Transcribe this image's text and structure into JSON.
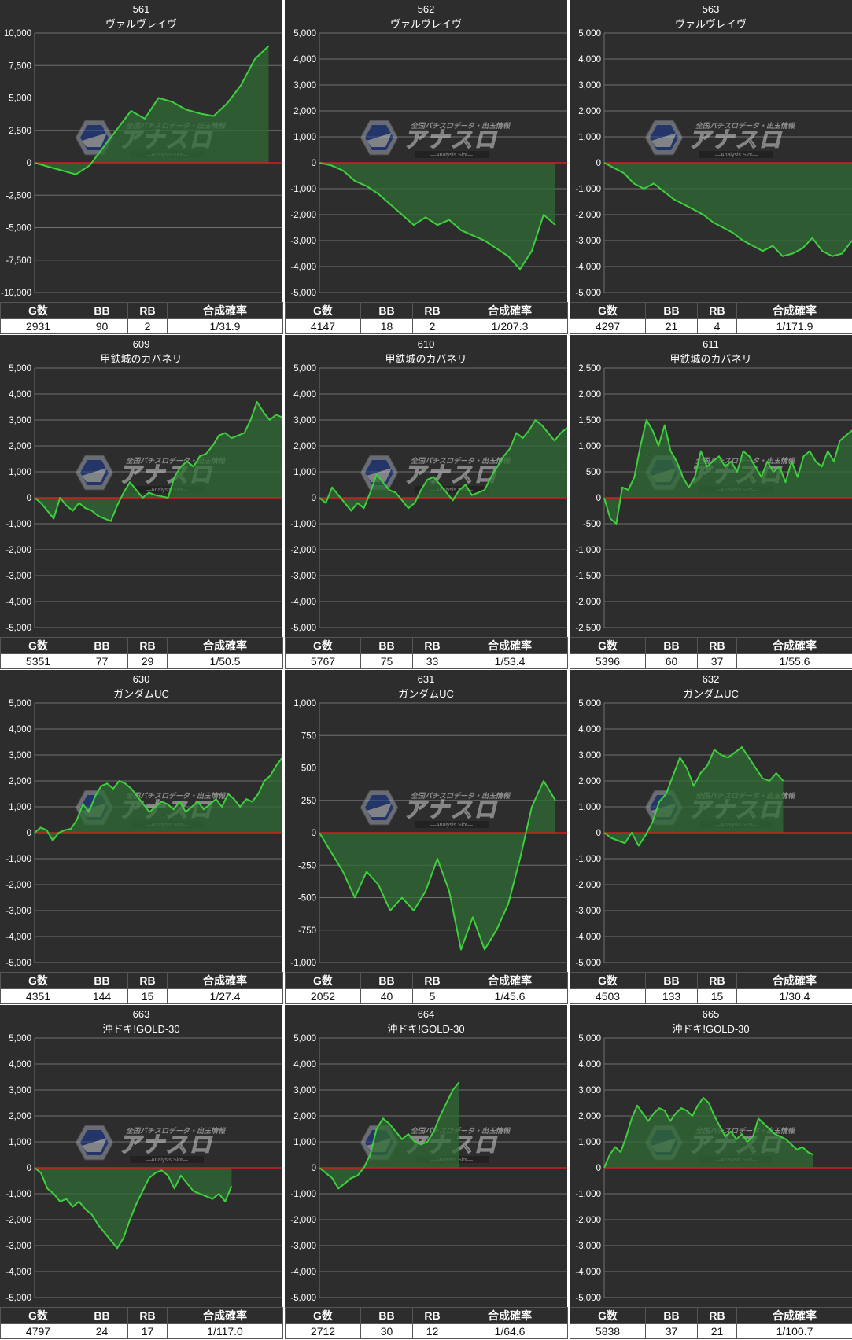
{
  "colors": {
    "panel_bg": "#2d2d2d",
    "grid": "#707070",
    "zero_line": "#d02020",
    "line": "#3ecf3e",
    "fill": "#2f6b33"
  },
  "icon": "analysis-slot-watermark-logo",
  "watermark": {
    "small_text": "全国パチスロデータ・出玉情報",
    "logo_text": "アナスロ",
    "sub_text": "―Analysis Slot―"
  },
  "stats_headers": [
    "G数",
    "BB",
    "RB",
    "合成確率"
  ],
  "chart_data": [
    {
      "type": "area",
      "machine_no": "561",
      "title": "ヴァルヴレイヴ",
      "ylim": [
        -10000,
        10000
      ],
      "yticks": [
        "10,000",
        "7,500",
        "5,000",
        "2,500",
        "0",
        "-2,500",
        "-5,000",
        "-7,500",
        "-10,000"
      ],
      "grid": true,
      "x": [
        0,
        1,
        2,
        3,
        4,
        5,
        6,
        7,
        8,
        9,
        10,
        11,
        12,
        13,
        14,
        15,
        16,
        17,
        18
      ],
      "values": [
        0,
        -300,
        -600,
        -900,
        -200,
        1200,
        2600,
        4000,
        3400,
        5000,
        4700,
        4100,
        3800,
        3600,
        4600,
        6000,
        8000,
        9000,
        null
      ],
      "stats": {
        "g": "2931",
        "bb": "90",
        "rb": "2",
        "rate": "1/31.9"
      }
    },
    {
      "type": "area",
      "machine_no": "562",
      "title": "ヴァルヴレイヴ",
      "ylim": [
        -5000,
        5000
      ],
      "yticks": [
        "5,000",
        "4,000",
        "3,000",
        "2,000",
        "1,000",
        "0",
        "-1,000",
        "-2,000",
        "-3,000",
        "-4,000",
        "-5,000"
      ],
      "grid": true,
      "x": [
        0,
        1,
        2,
        3,
        4,
        5,
        6,
        7,
        8,
        9,
        10,
        11,
        12,
        13,
        14,
        15,
        16,
        17,
        18,
        19,
        20,
        21
      ],
      "values": [
        0,
        -100,
        -300,
        -700,
        -900,
        -1200,
        -1600,
        -2000,
        -2400,
        -2100,
        -2400,
        -2200,
        -2600,
        -2800,
        -3000,
        -3300,
        -3600,
        -4100,
        -3400,
        -2000,
        -2400,
        null
      ],
      "stats": {
        "g": "4147",
        "bb": "18",
        "rb": "2",
        "rate": "1/207.3"
      }
    },
    {
      "type": "area",
      "machine_no": "563",
      "title": "ヴァルヴレイヴ",
      "ylim": [
        -5000,
        5000
      ],
      "yticks": [
        "5,000",
        "4,000",
        "3,000",
        "2,000",
        "1,000",
        "0",
        "-1,000",
        "-2,000",
        "-3,000",
        "-4,000",
        "-5,000"
      ],
      "grid": true,
      "x": [
        0,
        1,
        2,
        3,
        4,
        5,
        6,
        7,
        8,
        9,
        10,
        11,
        12,
        13,
        14,
        15,
        16,
        17,
        18,
        19,
        20,
        21,
        22,
        23,
        24,
        25
      ],
      "values": [
        0,
        -200,
        -400,
        -800,
        -1000,
        -800,
        -1100,
        -1400,
        -1600,
        -1800,
        -2000,
        -2300,
        -2500,
        -2700,
        -3000,
        -3200,
        -3400,
        -3200,
        -3600,
        -3500,
        -3300,
        -2900,
        -3400,
        -3600,
        -3500,
        -3000
      ],
      "stats": {
        "g": "4297",
        "bb": "21",
        "rb": "4",
        "rate": "1/171.9"
      }
    },
    {
      "type": "area",
      "machine_no": "609",
      "title": "甲鉄城のカバネリ",
      "ylim": [
        -5000,
        5000
      ],
      "yticks": [
        "5,000",
        "4,000",
        "3,000",
        "2,000",
        "1,000",
        "0",
        "-1,000",
        "-2,000",
        "-3,000",
        "-4,000",
        "-5,000"
      ],
      "grid": true,
      "x": [
        0,
        1,
        2,
        3,
        4,
        5,
        6,
        7,
        8,
        9,
        10,
        11,
        12,
        13,
        14,
        15,
        16,
        17,
        18,
        19,
        20,
        21,
        22,
        23,
        24,
        25,
        26,
        27,
        28,
        29,
        30,
        31,
        32,
        33,
        34,
        35,
        36,
        37,
        38,
        39
      ],
      "values": [
        0,
        -200,
        -500,
        -800,
        0,
        -300,
        -500,
        -200,
        -400,
        -500,
        -700,
        -800,
        -900,
        -300,
        200,
        600,
        300,
        0,
        200,
        100,
        50,
        0,
        800,
        1200,
        1400,
        1200,
        1600,
        1700,
        2000,
        2400,
        2500,
        2300,
        2400,
        2500,
        3000,
        3700,
        3300,
        3000,
        3200,
        3100
      ],
      "stats": {
        "g": "5351",
        "bb": "77",
        "rb": "29",
        "rate": "1/50.5"
      }
    },
    {
      "type": "area",
      "machine_no": "610",
      "title": "甲鉄城のカバネリ",
      "ylim": [
        -5000,
        5000
      ],
      "yticks": [
        "5,000",
        "4,000",
        "3,000",
        "2,000",
        "1,000",
        "0",
        "-1,000",
        "-2,000",
        "-3,000",
        "-4,000",
        "-5,000"
      ],
      "grid": true,
      "x": [
        0,
        1,
        2,
        3,
        4,
        5,
        6,
        7,
        8,
        9,
        10,
        11,
        12,
        13,
        14,
        15,
        16,
        17,
        18,
        19,
        20,
        21,
        22,
        23,
        24,
        25,
        26,
        27,
        28,
        29,
        30,
        31,
        32,
        33,
        34,
        35,
        36,
        37,
        38,
        39
      ],
      "values": [
        0,
        -200,
        400,
        100,
        -200,
        -500,
        -200,
        -400,
        200,
        900,
        600,
        300,
        200,
        -100,
        -400,
        -200,
        300,
        700,
        800,
        500,
        200,
        -100,
        300,
        500,
        100,
        200,
        300,
        800,
        1200,
        1600,
        1900,
        2500,
        2300,
        2600,
        3000,
        2800,
        2500,
        2200,
        2500,
        2700
      ],
      "stats": {
        "g": "5767",
        "bb": "75",
        "rb": "33",
        "rate": "1/53.4"
      }
    },
    {
      "type": "area",
      "machine_no": "611",
      "title": "甲鉄城のカバネリ",
      "ylim": [
        -2500,
        2500
      ],
      "yticks": [
        "2,500",
        "2,000",
        "1,500",
        "1,000",
        "500",
        "0",
        "-500",
        "-1,000",
        "-1,500",
        "-2,000",
        "-2,500"
      ],
      "grid": true,
      "x": [
        0,
        1,
        2,
        3,
        4,
        5,
        6,
        7,
        8,
        9,
        10,
        11,
        12,
        13,
        14,
        15,
        16,
        17,
        18,
        19,
        20,
        21,
        22,
        23,
        24,
        25,
        26,
        27,
        28,
        29,
        30,
        31,
        32,
        33,
        34,
        35,
        36,
        37,
        38,
        39,
        40,
        41
      ],
      "values": [
        0,
        -400,
        -500,
        200,
        150,
        400,
        1000,
        1500,
        1300,
        1000,
        1400,
        900,
        700,
        400,
        200,
        400,
        900,
        600,
        700,
        800,
        600,
        700,
        500,
        900,
        800,
        600,
        400,
        700,
        500,
        600,
        300,
        700,
        400,
        800,
        900,
        700,
        600,
        900,
        700,
        1100,
        1200,
        1300
      ],
      "stats": {
        "g": "5396",
        "bb": "60",
        "rb": "37",
        "rate": "1/55.6"
      }
    },
    {
      "type": "area",
      "machine_no": "630",
      "title": "ガンダムUC",
      "ylim": [
        -5000,
        5000
      ],
      "yticks": [
        "5,000",
        "4,000",
        "3,000",
        "2,000",
        "1,000",
        "0",
        "-1,000",
        "-2,000",
        "-3,000",
        "-4,000",
        "-5,000"
      ],
      "grid": true,
      "x": [
        0,
        1,
        2,
        3,
        4,
        5,
        6,
        7,
        8,
        9,
        10,
        11,
        12,
        13,
        14,
        15,
        16,
        17,
        18,
        19,
        20,
        21,
        22,
        23,
        24,
        25,
        26,
        27,
        28,
        29,
        30,
        31,
        32,
        33,
        34,
        35,
        36,
        37,
        38,
        39,
        40,
        41
      ],
      "values": [
        0,
        200,
        100,
        -300,
        0,
        100,
        150,
        500,
        1100,
        800,
        1400,
        1800,
        1900,
        1700,
        2000,
        1900,
        1700,
        1400,
        1100,
        800,
        1000,
        1200,
        1100,
        900,
        1200,
        800,
        1000,
        1200,
        900,
        1100,
        1300,
        1000,
        1500,
        1300,
        1000,
        1300,
        1200,
        1500,
        2000,
        2200,
        2600,
        2900
      ],
      "stats": {
        "g": "4351",
        "bb": "144",
        "rb": "15",
        "rate": "1/27.4"
      }
    },
    {
      "type": "area",
      "machine_no": "631",
      "title": "ガンダムUC",
      "ylim": [
        -1000,
        1000
      ],
      "yticks": [
        "1,000",
        "750",
        "500",
        "250",
        "0",
        "-250",
        "-500",
        "-750",
        "-1,000"
      ],
      "grid": true,
      "x": [
        0,
        1,
        2,
        3,
        4,
        5,
        6,
        7,
        8,
        9,
        10,
        11,
        12,
        13,
        14,
        15,
        16,
        17,
        18,
        19,
        20,
        21
      ],
      "values": [
        0,
        -150,
        -300,
        -500,
        -300,
        -400,
        -600,
        -500,
        -600,
        -450,
        -200,
        -450,
        -900,
        -650,
        -900,
        -750,
        -550,
        -200,
        200,
        400,
        250,
        null
      ],
      "stats": {
        "g": "2052",
        "bb": "40",
        "rb": "5",
        "rate": "1/45.6"
      }
    },
    {
      "type": "area",
      "machine_no": "632",
      "title": "ガンダムUC",
      "ylim": [
        -5000,
        5000
      ],
      "yticks": [
        "5,000",
        "4,000",
        "3,000",
        "2,000",
        "1,000",
        "0",
        "-1,000",
        "-2,000",
        "-3,000",
        "-4,000",
        "-5,000"
      ],
      "grid": true,
      "x": [
        0,
        1,
        2,
        3,
        4,
        5,
        6,
        7,
        8,
        9,
        10,
        11,
        12,
        13,
        14,
        15,
        16,
        17,
        18,
        19,
        20,
        21,
        22,
        23,
        24,
        25,
        26,
        27,
        28,
        29,
        30,
        31,
        32,
        33,
        34,
        35,
        36
      ],
      "values": [
        0,
        -200,
        -300,
        -400,
        0,
        -500,
        -100,
        400,
        1200,
        1500,
        2200,
        2900,
        2500,
        1800,
        2300,
        2600,
        3200,
        3000,
        2900,
        3100,
        3300,
        2900,
        2500,
        2100,
        2000,
        2300,
        2000,
        null,
        null,
        null,
        null,
        null,
        null,
        null,
        null,
        null,
        null
      ],
      "stats": {
        "g": "4503",
        "bb": "133",
        "rb": "15",
        "rate": "1/30.4"
      }
    },
    {
      "type": "area",
      "machine_no": "663",
      "title": "沖ドキ!GOLD-30",
      "ylim": [
        -5000,
        5000
      ],
      "yticks": [
        "5,000",
        "4,000",
        "3,000",
        "2,000",
        "1,000",
        "0",
        "-1,000",
        "-2,000",
        "-3,000",
        "-4,000",
        "-5,000"
      ],
      "grid": true,
      "x": [
        0,
        1,
        2,
        3,
        4,
        5,
        6,
        7,
        8,
        9,
        10,
        11,
        12,
        13,
        14,
        15,
        16,
        17,
        18,
        19,
        20,
        21,
        22,
        23,
        24,
        25,
        26,
        27,
        28,
        29,
        30,
        31,
        32,
        33,
        34,
        35,
        36,
        37,
        38,
        39
      ],
      "values": [
        0,
        -200,
        -800,
        -1000,
        -1300,
        -1200,
        -1500,
        -1300,
        -1600,
        -1800,
        -2200,
        -2500,
        -2800,
        -3100,
        -2700,
        -2000,
        -1400,
        -900,
        -400,
        -200,
        -100,
        -300,
        -800,
        -300,
        -600,
        -900,
        -1000,
        -1100,
        -1200,
        -1000,
        -1300,
        -700,
        null,
        null,
        null,
        null,
        null,
        null,
        null,
        null
      ],
      "stats": {
        "g": "4797",
        "bb": "24",
        "rb": "17",
        "rate": "1/117.0"
      }
    },
    {
      "type": "area",
      "machine_no": "664",
      "title": "沖ドキ!GOLD-30",
      "ylim": [
        -5000,
        5000
      ],
      "yticks": [
        "5,000",
        "4,000",
        "3,000",
        "2,000",
        "1,000",
        "0",
        "-1,000",
        "-2,000",
        "-3,000",
        "-4,000",
        "-5,000"
      ],
      "grid": true,
      "x": [
        0,
        1,
        2,
        3,
        4,
        5,
        6,
        7,
        8,
        9,
        10,
        11,
        12,
        13,
        14,
        15,
        16,
        17,
        18,
        19,
        20,
        21,
        22,
        23,
        24,
        25,
        26,
        27,
        28,
        29,
        30,
        31,
        32,
        33,
        34,
        35,
        36,
        37,
        38,
        39
      ],
      "values": [
        0,
        -200,
        -400,
        -800,
        -600,
        -400,
        -300,
        0,
        500,
        1500,
        1900,
        1700,
        1400,
        1100,
        1300,
        1000,
        900,
        1000,
        1400,
        2000,
        2500,
        3000,
        3300,
        null,
        null,
        null,
        null,
        null,
        null,
        null,
        null,
        null,
        null,
        null,
        null,
        null,
        null,
        null,
        null,
        null
      ],
      "stats": {
        "g": "2712",
        "bb": "30",
        "rb": "12",
        "rate": "1/64.6"
      }
    },
    {
      "type": "area",
      "machine_no": "665",
      "title": "沖ドキ!GOLD-30",
      "ylim": [
        -5000,
        5000
      ],
      "yticks": [
        "5,000",
        "4,000",
        "3,000",
        "2,000",
        "1,000",
        "0",
        "-1,000",
        "-2,000",
        "-3,000",
        "-4,000",
        "-5,000"
      ],
      "grid": true,
      "x": [
        0,
        1,
        2,
        3,
        4,
        5,
        6,
        7,
        8,
        9,
        10,
        11,
        12,
        13,
        14,
        15,
        16,
        17,
        18,
        19,
        20,
        21,
        22,
        23,
        24,
        25,
        26,
        27,
        28,
        29,
        30,
        31,
        32,
        33,
        34,
        35,
        36,
        37,
        38,
        39,
        40,
        41,
        42,
        43,
        44,
        45
      ],
      "values": [
        0,
        500,
        800,
        600,
        1200,
        1900,
        2400,
        2100,
        1800,
        2100,
        2300,
        2200,
        1800,
        2100,
        2300,
        2200,
        2000,
        2400,
        2700,
        2500,
        2000,
        1600,
        1200,
        1400,
        1100,
        1300,
        1000,
        1200,
        1900,
        1700,
        1500,
        1300,
        1200,
        1100,
        900,
        700,
        800,
        600,
        500,
        null,
        null,
        null,
        null,
        null,
        null,
        null
      ],
      "stats": {
        "g": "5838",
        "bb": "37",
        "rb": "21",
        "rate": "1/100.7"
      }
    }
  ]
}
